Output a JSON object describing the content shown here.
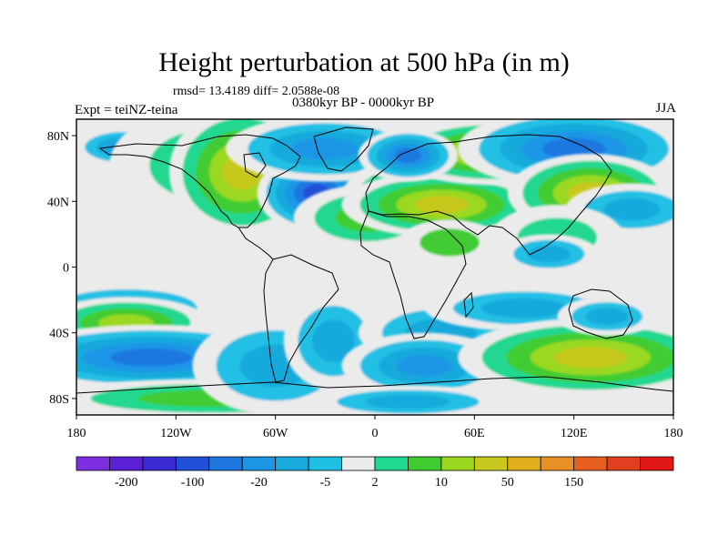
{
  "title": "Height perturbation at 500 hPa (in m)",
  "stats": "rmsd= 13.4189 diff= 2.0588e-08",
  "left_label": "Expt = teiNZ-teina",
  "center_label": "0380kyr BP - 0000kyr BP",
  "right_label": "JJA",
  "chart_data": {
    "type": "heatmap",
    "projection": "cylindrical-equidistant",
    "xlim": [
      -180,
      180
    ],
    "ylim": [
      -90,
      90
    ],
    "x_ticks": [
      {
        "value": -180,
        "label": "180"
      },
      {
        "value": -120,
        "label": "120W"
      },
      {
        "value": -60,
        "label": "60W"
      },
      {
        "value": 0,
        "label": "0"
      },
      {
        "value": 60,
        "label": "60E"
      },
      {
        "value": 120,
        "label": "120E"
      },
      {
        "value": 180,
        "label": "180"
      }
    ],
    "y_ticks": [
      {
        "value": 80,
        "label": "80N"
      },
      {
        "value": 40,
        "label": "40N"
      },
      {
        "value": 0,
        "label": "0"
      },
      {
        "value": -40,
        "label": "40S"
      },
      {
        "value": -80,
        "label": "80S"
      }
    ],
    "colorbar": {
      "colors": [
        "#7d2ee0",
        "#5a1fd6",
        "#3a2bd4",
        "#2050d8",
        "#1f78e0",
        "#1e96e6",
        "#18aadc",
        "#20c0e4",
        "#ebebeb",
        "#20d890",
        "#40cc30",
        "#9ad820",
        "#c8c81e",
        "#e0b01e",
        "#e89024",
        "#e86020",
        "#e04020",
        "#e01818"
      ],
      "labels": [
        "-200",
        "-100",
        "-20",
        "-5",
        "2",
        "10",
        "50",
        "150"
      ]
    },
    "anomalies": [
      {
        "lon": -150,
        "lat": 73,
        "rlon": 16,
        "rlat": 6,
        "value": -15
      },
      {
        "lon": -125,
        "lat": 55,
        "rlon": 18,
        "rlat": 14,
        "value": -12
      },
      {
        "lon": -100,
        "lat": 62,
        "rlon": 30,
        "rlat": 18,
        "value": 3
      },
      {
        "lon": -80,
        "lat": 58,
        "rlon": 22,
        "rlat": 20,
        "value": 40
      },
      {
        "lon": -35,
        "lat": 45,
        "rlon": 18,
        "rlat": 12,
        "value": -80
      },
      {
        "lon": -30,
        "lat": 72,
        "rlon": 30,
        "rlat": 10,
        "value": -15
      },
      {
        "lon": 20,
        "lat": 42,
        "rlon": 20,
        "rlat": 12,
        "value": 20
      },
      {
        "lon": -5,
        "lat": 30,
        "rlon": 22,
        "rlat": 10,
        "value": 8
      },
      {
        "lon": 40,
        "lat": 38,
        "rlon": 30,
        "rlat": 10,
        "value": 35
      },
      {
        "lon": 70,
        "lat": 70,
        "rlon": 30,
        "rlat": 10,
        "value": 50
      },
      {
        "lon": 20,
        "lat": 68,
        "rlon": 15,
        "rlat": 8,
        "value": -30
      },
      {
        "lon": 120,
        "lat": 72,
        "rlon": 35,
        "rlat": 12,
        "value": -30
      },
      {
        "lon": 130,
        "lat": 45,
        "rlon": 25,
        "rlat": 12,
        "value": 25
      },
      {
        "lon": 155,
        "lat": 35,
        "rlon": 20,
        "rlat": 8,
        "value": -10
      },
      {
        "lon": 45,
        "lat": 15,
        "rlon": 15,
        "rlat": 7,
        "value": 5
      },
      {
        "lon": 110,
        "lat": 18,
        "rlon": 20,
        "rlat": 10,
        "value": 3
      },
      {
        "lon": 105,
        "lat": 8,
        "rlon": 15,
        "rlat": 6,
        "value": -6
      },
      {
        "lon": -150,
        "lat": -25,
        "rlon": 30,
        "rlat": 8,
        "value": -6
      },
      {
        "lon": -150,
        "lat": -34,
        "rlon": 25,
        "rlat": 8,
        "value": 15
      },
      {
        "lon": -135,
        "lat": -55,
        "rlon": 45,
        "rlat": 10,
        "value": -30
      },
      {
        "lon": -100,
        "lat": -80,
        "rlon": 50,
        "rlat": 6,
        "value": 8
      },
      {
        "lon": -60,
        "lat": -60,
        "rlon": 25,
        "rlat": 15,
        "value": -10
      },
      {
        "lon": -25,
        "lat": -45,
        "rlon": 15,
        "rlat": 15,
        "value": -6
      },
      {
        "lon": 40,
        "lat": -40,
        "rlon": 25,
        "rlat": 10,
        "value": -6
      },
      {
        "lon": 30,
        "lat": -60,
        "rlon": 25,
        "rlat": 10,
        "value": -20
      },
      {
        "lon": 90,
        "lat": -25,
        "rlon": 30,
        "rlat": 7,
        "value": -6
      },
      {
        "lon": 130,
        "lat": -55,
        "rlon": 40,
        "rlat": 12,
        "value": 25
      },
      {
        "lon": 140,
        "lat": -30,
        "rlon": 15,
        "rlat": 6,
        "value": -6
      },
      {
        "lon": 20,
        "lat": -82,
        "rlon": 30,
        "rlat": 5,
        "value": -6
      }
    ]
  }
}
